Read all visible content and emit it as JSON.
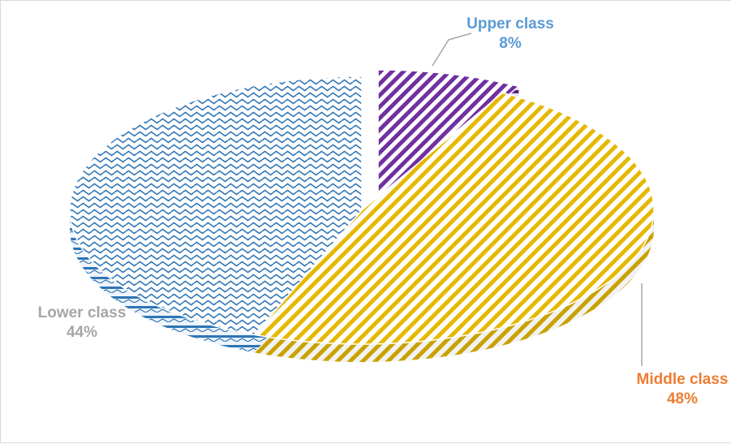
{
  "chart_data": {
    "type": "pie",
    "variant": "3d-exploded",
    "title": "",
    "slices": [
      {
        "name": "Upper class",
        "value": 8,
        "label": "8%",
        "color": "#7030a0",
        "label_color": "#5b9bd5",
        "pattern": "diagonal-stripes"
      },
      {
        "name": "Middle class",
        "value": 48,
        "label": "48%",
        "color": "#e6b800",
        "label_color": "#ed7d31",
        "pattern": "diagonal-stripes"
      },
      {
        "name": "Lower class",
        "value": 44,
        "label": "44%",
        "color": "#2e75b6",
        "label_color": "#a6a6a6",
        "pattern": "wave"
      }
    ]
  }
}
